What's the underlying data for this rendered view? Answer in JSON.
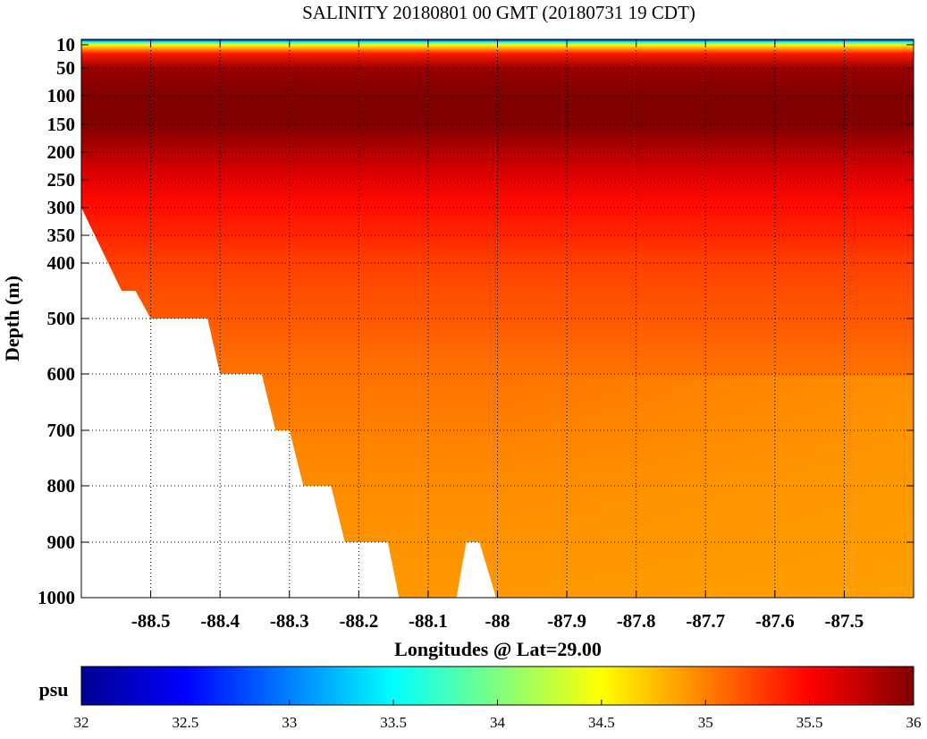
{
  "chart_data": {
    "type": "heatmap",
    "title": "SALINITY 20180801 00 GMT (20180731 19 CDT)",
    "xlabel": "Longitudes @ Lat=29.00",
    "ylabel": "Depth (m)",
    "xlim": [
      -88.6,
      -87.4
    ],
    "x_ticks": [
      -88.5,
      -88.4,
      -88.3,
      -88.2,
      -88.1,
      -88,
      -87.9,
      -87.8,
      -87.7,
      -87.6,
      -87.5
    ],
    "x_tick_labels": [
      "-88.5",
      "-88.4",
      "-88.3",
      "-88.2",
      "-88.1",
      "-88",
      "-87.9",
      "-87.8",
      "-87.7",
      "-87.6",
      "-87.5"
    ],
    "y_ticks": [
      10,
      50,
      100,
      150,
      200,
      250,
      300,
      350,
      400,
      500,
      600,
      700,
      800,
      900,
      1000
    ],
    "y_tick_labels": [
      "10",
      "50",
      "100",
      "150",
      "200",
      "250",
      "300",
      "350",
      "400",
      "500",
      "600",
      "700",
      "800",
      "900",
      "1000"
    ],
    "y_scale": "piecewise: 50 m steps to 400 m, 100 m steps below 400 m",
    "y_reversed": true,
    "grid": true,
    "colorbar": {
      "label": "psu",
      "range": [
        32,
        36
      ],
      "ticks": [
        "32",
        "32.5",
        "33",
        "33.5",
        "34",
        "34.5",
        "35",
        "35.5",
        "36"
      ],
      "colormap": "jet"
    },
    "salinity_by_depth_psu": [
      {
        "depth": 0,
        "value": 32.0
      },
      {
        "depth": 5,
        "value": 33.5
      },
      {
        "depth": 10,
        "value": 34.5
      },
      {
        "depth": 25,
        "value": 35.4
      },
      {
        "depth": 50,
        "value": 35.9
      },
      {
        "depth": 100,
        "value": 36.0
      },
      {
        "depth": 150,
        "value": 36.0
      },
      {
        "depth": 200,
        "value": 35.8
      },
      {
        "depth": 250,
        "value": 35.6
      },
      {
        "depth": 300,
        "value": 35.45
      },
      {
        "depth": 350,
        "value": 35.35
      },
      {
        "depth": 400,
        "value": 35.25
      },
      {
        "depth": 500,
        "value": 35.15
      },
      {
        "depth": 600,
        "value": 35.05
      },
      {
        "depth": 800,
        "value": 34.95
      },
      {
        "depth": 1000,
        "value": 34.9
      }
    ],
    "seafloor_boundary": [
      {
        "lon": -88.6,
        "depth": 300
      },
      {
        "lon": -88.542,
        "depth": 450
      },
      {
        "lon": -88.522,
        "depth": 450
      },
      {
        "lon": -88.5,
        "depth": 500
      },
      {
        "lon": -88.418,
        "depth": 500
      },
      {
        "lon": -88.4,
        "depth": 600
      },
      {
        "lon": -88.34,
        "depth": 600
      },
      {
        "lon": -88.32,
        "depth": 700
      },
      {
        "lon": -88.3,
        "depth": 700
      },
      {
        "lon": -88.28,
        "depth": 800
      },
      {
        "lon": -88.24,
        "depth": 800
      },
      {
        "lon": -88.22,
        "depth": 900
      },
      {
        "lon": -88.158,
        "depth": 900
      },
      {
        "lon": -88.142,
        "depth": 1000
      },
      {
        "lon": -88.059,
        "depth": 1000
      },
      {
        "lon": -88.045,
        "depth": 900
      },
      {
        "lon": -88.026,
        "depth": 900
      },
      {
        "lon": -88.002,
        "depth": 1000
      }
    ]
  }
}
